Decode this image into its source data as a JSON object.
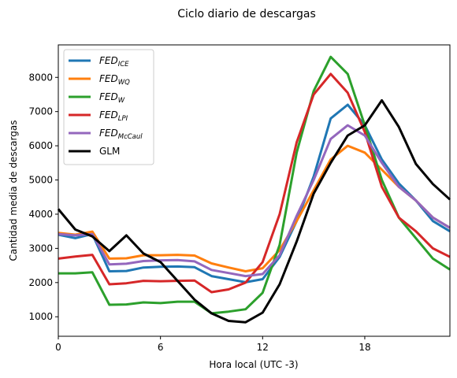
{
  "chart_data": {
    "type": "line",
    "title": "Ciclo diario de descargas",
    "xlabel": "Hora local (UTC -3)",
    "ylabel": "Cantidad media de descargas",
    "xlim": [
      0,
      23
    ],
    "ylim": [
      430,
      8950
    ],
    "xticks": [
      0,
      6,
      12,
      18
    ],
    "yticks": [
      1000,
      2000,
      3000,
      4000,
      5000,
      6000,
      7000,
      8000
    ],
    "grid": false,
    "legend": "top-left",
    "x": [
      0,
      1,
      2,
      3,
      4,
      5,
      6,
      7,
      8,
      9,
      10,
      11,
      12,
      13,
      14,
      15,
      16,
      17,
      18,
      19,
      20,
      21,
      22,
      23
    ],
    "series": [
      {
        "name": "FED",
        "sub": "ICE",
        "color": "#1f77b4",
        "width": 3,
        "italic": true,
        "values": [
          3400,
          3300,
          3420,
          2330,
          2340,
          2440,
          2460,
          2470,
          2450,
          2190,
          2100,
          2010,
          2100,
          2750,
          3800,
          5100,
          6800,
          7200,
          6600,
          5600,
          4900,
          4400,
          3800,
          3500
        ]
      },
      {
        "name": "FED",
        "sub": "WQ",
        "color": "#ff7f0e",
        "width": 3,
        "italic": true,
        "values": [
          3450,
          3400,
          3490,
          2700,
          2710,
          2800,
          2800,
          2810,
          2790,
          2560,
          2440,
          2330,
          2420,
          2950,
          3800,
          4700,
          5600,
          6000,
          5800,
          5300,
          4800,
          4400,
          3900,
          3600
        ]
      },
      {
        "name": "FED",
        "sub": "W",
        "color": "#2ca02c",
        "width": 3,
        "italic": true,
        "values": [
          2270,
          2270,
          2300,
          1350,
          1360,
          1420,
          1400,
          1440,
          1440,
          1100,
          1150,
          1220,
          1700,
          3100,
          5800,
          7600,
          8600,
          8100,
          6600,
          5000,
          3900,
          3300,
          2700,
          2380
        ]
      },
      {
        "name": "FED",
        "sub": "LPI",
        "color": "#d62728",
        "width": 3,
        "italic": true,
        "values": [
          2700,
          2760,
          2810,
          1950,
          1980,
          2050,
          2040,
          2050,
          2060,
          1720,
          1800,
          2000,
          2600,
          4000,
          6100,
          7500,
          8100,
          7550,
          6400,
          4800,
          3900,
          3500,
          3000,
          2750
        ]
      },
      {
        "name": "FED",
        "sub": "McCaul",
        "color": "#9467bd",
        "width": 3,
        "italic": true,
        "values": [
          3420,
          3380,
          3420,
          2530,
          2550,
          2630,
          2650,
          2660,
          2620,
          2370,
          2280,
          2190,
          2250,
          2800,
          3950,
          5000,
          6200,
          6600,
          6300,
          5500,
          4800,
          4400,
          3900,
          3600
        ]
      },
      {
        "name": "GLM",
        "sub": "",
        "color": "#000000",
        "width": 3,
        "italic": false,
        "values": [
          4150,
          3550,
          3350,
          2920,
          3380,
          2850,
          2600,
          2050,
          1500,
          1100,
          880,
          840,
          1120,
          1950,
          3200,
          4600,
          5500,
          6300,
          6600,
          7330,
          6550,
          5470,
          4880,
          4430
        ]
      }
    ]
  }
}
